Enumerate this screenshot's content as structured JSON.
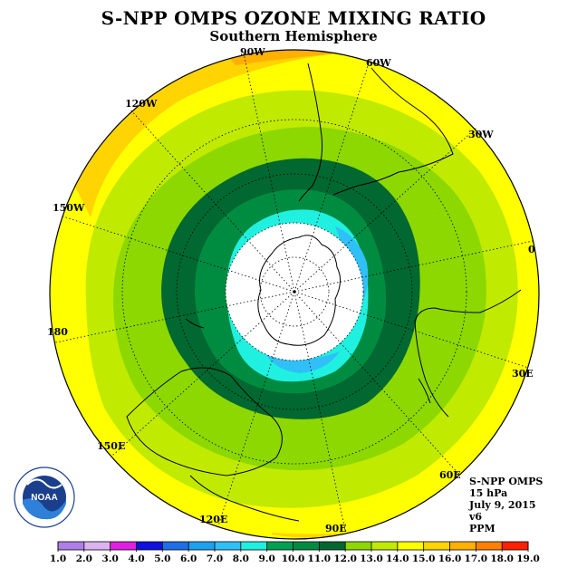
{
  "title": "S-NPP OMPS OZONE MIXING RATIO",
  "subtitle": "Southern Hemisphere",
  "longitude_labels": [
    "90W",
    "60W",
    "30W",
    "0",
    "30E",
    "60E",
    "90E",
    "120E",
    "150E",
    "180",
    "150W",
    "120W"
  ],
  "info": {
    "instrument": "S-NPP OMPS",
    "level": "15 hPa",
    "date": "July 9, 2015",
    "version": "v6",
    "units": "PPM"
  },
  "logo_text": "NOAA",
  "colorbar": {
    "ticks": [
      "1.0",
      "2.0",
      "3.0",
      "4.0",
      "5.0",
      "6.0",
      "7.0",
      "8.0",
      "9.0",
      "10.0",
      "11.0",
      "12.0",
      "13.0",
      "14.0",
      "15.0",
      "16.0",
      "17.0",
      "18.0",
      "19.0"
    ],
    "colors": [
      "#b07ee8",
      "#dcb3f0",
      "#e020e0",
      "#1010e0",
      "#1e6ee8",
      "#1ea0f0",
      "#30c0f8",
      "#20f0e0",
      "#00a050",
      "#008c40",
      "#006830",
      "#8cd800",
      "#c0ea00",
      "#ffff00",
      "#ffd400",
      "#ffb000",
      "#ff8000",
      "#ff2000",
      "#a06040"
    ]
  },
  "map_colors": {
    "ring_14_15": "#ffff00",
    "ring_13_14": "#c0ea00",
    "ring_12_13": "#8cd800",
    "ring_11_12": "#008c40",
    "ring_10_11": "#006830",
    "ring_9_10": "#008c40",
    "ring_8_9": "#20f0e0",
    "ring_7_8": "#30c0f8",
    "edge_15_16": "#ffd400",
    "edge_16_17": "#ffb000",
    "no_data": "#ffffff"
  }
}
